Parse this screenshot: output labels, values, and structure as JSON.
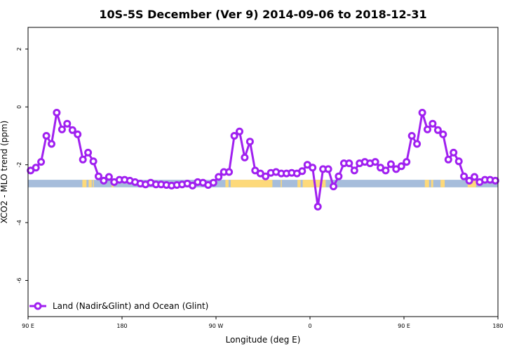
{
  "chart_data": {
    "type": "line",
    "title": "10S-5S December (Ver 9)   2014-09-06 to 2018-12-31",
    "xlabel": "Longitude (deg E)",
    "ylabel": "XCO2 - MLO trend (ppm)",
    "xlim": [
      90,
      540
    ],
    "ylim": [
      -7.25,
      2.75
    ],
    "x_ticks": [
      {
        "value": 90,
        "label": "90 E"
      },
      {
        "value": 180,
        "label": "180"
      },
      {
        "value": 270,
        "label": "90 W"
      },
      {
        "value": 360,
        "label": "0"
      },
      {
        "value": 450,
        "label": "90 E"
      },
      {
        "value": 540,
        "label": "180"
      }
    ],
    "y_ticks": [
      {
        "value": 2,
        "label": "2"
      },
      {
        "value": 0,
        "label": "0"
      },
      {
        "value": -2,
        "label": "-2"
      },
      {
        "value": -4,
        "label": "-4"
      },
      {
        "value": -6,
        "label": "-6"
      }
    ],
    "colors": {
      "series": "#a020f0",
      "ocean": "#a6bddb",
      "land": "#fdd97a"
    },
    "band": {
      "y_top": -2.52,
      "y_bottom": -2.78,
      "land_segments": [
        [
          142,
          146
        ],
        [
          148,
          151
        ],
        [
          152,
          153
        ],
        [
          170,
          172
        ],
        [
          279,
          282
        ],
        [
          284,
          324
        ],
        [
          332,
          333
        ],
        [
          348,
          351
        ],
        [
          353,
          375
        ],
        [
          470,
          474
        ],
        [
          476,
          478
        ],
        [
          485,
          489
        ],
        [
          511,
          519
        ]
      ]
    },
    "legend": {
      "position": "bottom-left"
    },
    "series": [
      {
        "name": "Land (Nadir&Glint) and Ocean (Glint)",
        "x": [
          92.5,
          97.5,
          102.5,
          107.5,
          112.5,
          117.5,
          122.5,
          127.5,
          132.5,
          137.5,
          142.5,
          147.5,
          152.5,
          157.5,
          162.5,
          167.5,
          172.5,
          177.5,
          182.5,
          187.5,
          192.5,
          197.5,
          202.5,
          207.5,
          212.5,
          217.5,
          222.5,
          227.5,
          232.5,
          237.5,
          242.5,
          247.5,
          252.5,
          257.5,
          262.5,
          267.5,
          272.5,
          277.5,
          282.5,
          287.5,
          292.5,
          297.5,
          302.5,
          307.5,
          312.5,
          317.5,
          322.5,
          327.5,
          332.5,
          337.5,
          342.5,
          347.5,
          352.5,
          357.5,
          362.5,
          367.5,
          372.5,
          377.5,
          382.5,
          387.5,
          392.5,
          397.5,
          402.5,
          407.5,
          412.5,
          417.5,
          422.5,
          427.5,
          432.5,
          437.5,
          442.5,
          447.5,
          452.5,
          457.5,
          462.5,
          467.5,
          472.5,
          477.5,
          482.5,
          487.5,
          492.5,
          497.5,
          502.5,
          507.5,
          512.5,
          517.5,
          522.5,
          527.5,
          532.5,
          537.5
        ],
        "y": [
          -2.2,
          -2.1,
          -1.9,
          -1.0,
          -1.28,
          -0.2,
          -0.78,
          -0.58,
          -0.8,
          -0.95,
          -1.82,
          -1.58,
          -1.88,
          -2.4,
          -2.55,
          -2.42,
          -2.6,
          -2.52,
          -2.52,
          -2.55,
          -2.6,
          -2.65,
          -2.68,
          -2.62,
          -2.68,
          -2.68,
          -2.7,
          -2.72,
          -2.7,
          -2.68,
          -2.65,
          -2.72,
          -2.6,
          -2.62,
          -2.7,
          -2.62,
          -2.42,
          -2.25,
          -2.25,
          -1.0,
          -0.85,
          -1.75,
          -1.2,
          -2.2,
          -2.3,
          -2.4,
          -2.28,
          -2.25,
          -2.3,
          -2.3,
          -2.28,
          -2.3,
          -2.22,
          -2.0,
          -2.1,
          -3.45,
          -2.15,
          -2.15,
          -2.75,
          -2.4,
          -1.95,
          -1.95,
          -2.2,
          -1.95,
          -1.9,
          -1.95,
          -1.9,
          -2.1,
          -2.2,
          -1.98,
          -2.15,
          -2.05,
          -1.9,
          -1.0,
          -1.28,
          -0.2,
          -0.78,
          -0.58,
          -0.8,
          -0.95,
          -1.82,
          -1.58,
          -1.88,
          -2.4,
          -2.55,
          -2.42,
          -2.6,
          -2.52,
          -2.52,
          -2.55
        ]
      }
    ]
  }
}
